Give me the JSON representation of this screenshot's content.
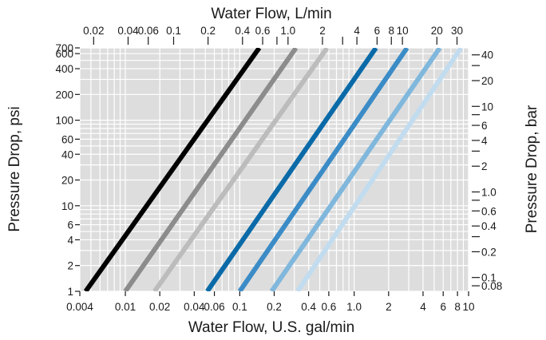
{
  "chart_data": {
    "type": "line",
    "title": "",
    "xlabel": "Water Flow, U.S. gal/min",
    "ylabel": "Pressure Drop, psi",
    "top_xlabel": "Water Flow, L/min",
    "right_ylabel": "Pressure Drop, bar",
    "x_scale": "log",
    "y_scale": "log",
    "xlim": [
      0.004,
      10
    ],
    "ylim": [
      1,
      700
    ],
    "grid": true,
    "x_ticks": [
      {
        "value": 0.004,
        "label": "0.004"
      },
      {
        "value": 0.01,
        "label": "0.01"
      },
      {
        "value": 0.02,
        "label": "0.02"
      },
      {
        "value": 0.04,
        "label": "0.04"
      },
      {
        "value": 0.06,
        "label": "0.06"
      },
      {
        "value": 0.1,
        "label": "0.1"
      },
      {
        "value": 0.2,
        "label": "0.2"
      },
      {
        "value": 0.4,
        "label": "0.4"
      },
      {
        "value": 0.6,
        "label": "0.6"
      },
      {
        "value": 1,
        "label": "1.0"
      },
      {
        "value": 2,
        "label": "2"
      },
      {
        "value": 4,
        "label": "4"
      },
      {
        "value": 6,
        "label": "6"
      },
      {
        "value": 8,
        "label": "8"
      },
      {
        "value": 10,
        "label": "10"
      }
    ],
    "y_ticks": [
      {
        "value": 1,
        "label": "1"
      },
      {
        "value": 2,
        "label": "2"
      },
      {
        "value": 4,
        "label": "4"
      },
      {
        "value": 6,
        "label": "6"
      },
      {
        "value": 10,
        "label": "10"
      },
      {
        "value": 20,
        "label": "20"
      },
      {
        "value": 40,
        "label": "40"
      },
      {
        "value": 60,
        "label": "60"
      },
      {
        "value": 100,
        "label": "100"
      },
      {
        "value": 200,
        "label": "200"
      },
      {
        "value": 400,
        "label": "400"
      },
      {
        "value": 600,
        "label": "600"
      },
      {
        "value": 700,
        "label": "700"
      }
    ],
    "top_ticks": [
      {
        "value": 0.02,
        "label": "0.02"
      },
      {
        "value": 0.04,
        "label": "0.04"
      },
      {
        "value": 0.06,
        "label": "0.06"
      },
      {
        "value": 0.1,
        "label": "0.1"
      },
      {
        "value": 0.2,
        "label": "0.2"
      },
      {
        "value": 0.4,
        "label": "0.4"
      },
      {
        "value": 0.6,
        "label": "0.6"
      },
      {
        "value": 0.8,
        "label": ""
      },
      {
        "value": 1,
        "label": "1.0"
      },
      {
        "value": 2,
        "label": "2"
      },
      {
        "value": 3,
        "label": ""
      },
      {
        "value": 4,
        "label": "4"
      },
      {
        "value": 6,
        "label": "6"
      },
      {
        "value": 8,
        "label": "8"
      },
      {
        "value": 10,
        "label": "10"
      },
      {
        "value": 20,
        "label": "20"
      },
      {
        "value": 30,
        "label": "30"
      }
    ],
    "right_ticks": [
      {
        "value": 40,
        "label": "40"
      },
      {
        "value": 30,
        "label": ""
      },
      {
        "value": 20,
        "label": "20"
      },
      {
        "value": 10,
        "label": "10"
      },
      {
        "value": 8,
        "label": ""
      },
      {
        "value": 6,
        "label": "6"
      },
      {
        "value": 4,
        "label": "4"
      },
      {
        "value": 3,
        "label": ""
      },
      {
        "value": 2,
        "label": "2"
      },
      {
        "value": 1,
        "label": "1.0"
      },
      {
        "value": 0.8,
        "label": ""
      },
      {
        "value": 0.6,
        "label": "0.6"
      },
      {
        "value": 0.4,
        "label": "0.4"
      },
      {
        "value": 0.3,
        "label": ""
      },
      {
        "value": 0.2,
        "label": "0.2"
      },
      {
        "value": 0.1,
        "label": "0.1"
      },
      {
        "value": 0.08,
        "label": "0.08"
      }
    ],
    "series": [
      {
        "color": "#000000",
        "points": [
          [
            0.0045,
            1
          ],
          [
            0.148,
            700
          ]
        ]
      },
      {
        "color": "#8c8c8c",
        "points": [
          [
            0.01,
            1
          ],
          [
            0.31,
            700
          ]
        ]
      },
      {
        "color": "#bcbcbc",
        "points": [
          [
            0.018,
            1
          ],
          [
            0.58,
            700
          ]
        ]
      },
      {
        "color": "#0a6aa8",
        "points": [
          [
            0.052,
            1
          ],
          [
            1.55,
            700
          ]
        ]
      },
      {
        "color": "#3b8cc6",
        "points": [
          [
            0.1,
            1
          ],
          [
            2.9,
            700
          ]
        ]
      },
      {
        "color": "#80b7dc",
        "points": [
          [
            0.19,
            1
          ],
          [
            5.6,
            700
          ]
        ]
      },
      {
        "color": "#c2dcef",
        "points": [
          [
            0.32,
            1
          ],
          [
            8.6,
            700
          ]
        ]
      }
    ]
  }
}
